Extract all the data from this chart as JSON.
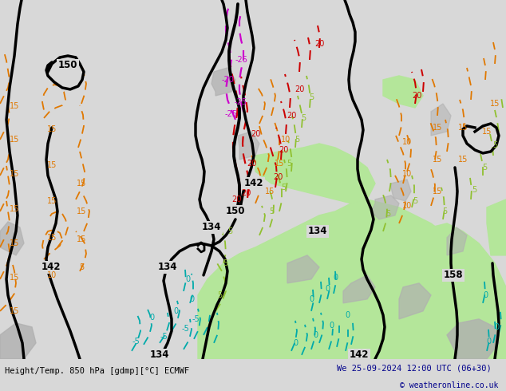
{
  "title_left": "Height/Temp. 850 hPa [gdmp][°C] ECMWF",
  "title_right": "We 25-09-2024 12:00 UTC (06+30)",
  "copyright": "© weatheronline.co.uk",
  "bg_color": "#d8d8d8",
  "map_bg_color": "#d8d8d8",
  "green_fill_color": "#b4e69a",
  "footer_bg": "#ffffff",
  "footer_text_color": "#00008b",
  "title_text_color": "#000000",
  "copyright_color": "#00008b",
  "geopotential_color": "#000000",
  "geopotential_lw": 2.5,
  "temp_positive_color": "#e07800",
  "temp_positive2_color": "#90c030",
  "temp_negative_color": "#00aaaa",
  "temp_20_color": "#cc0000",
  "temp_25_color": "#cc00cc",
  "temp_lw": 1.3,
  "fig_width": 6.34,
  "fig_height": 4.9,
  "dpi": 100
}
